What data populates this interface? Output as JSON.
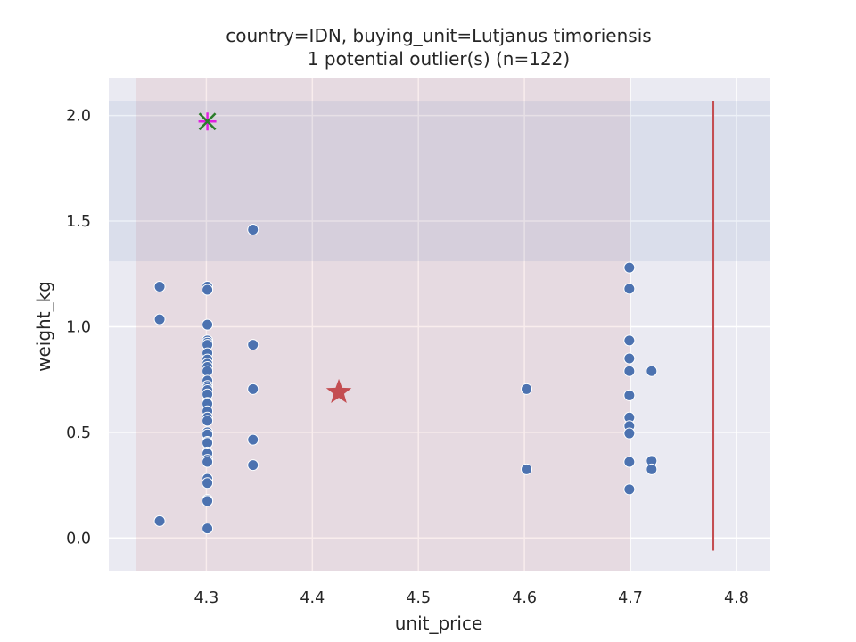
{
  "chart_data": {
    "type": "scatter",
    "title": "country=IDN, buying_unit=Lutjanus timoriensis",
    "subtitle": "1 potential outlier(s) (n=122)",
    "xlabel": "unit_price",
    "ylabel": "weight_kg",
    "xlim": [
      4.208,
      4.832
    ],
    "ylim": [
      -0.155,
      2.18
    ],
    "x_ticks": [
      4.3,
      4.4,
      4.5,
      4.6,
      4.7,
      4.8
    ],
    "x_tick_labels": [
      "4.3",
      "4.4",
      "4.5",
      "4.6",
      "4.7",
      "4.8"
    ],
    "y_ticks": [
      0.0,
      0.5,
      1.0,
      1.5,
      2.0
    ],
    "y_tick_labels": [
      "0.0",
      "0.5",
      "1.0",
      "1.5",
      "2.0"
    ],
    "grid": true,
    "colors": {
      "background": "#eaeaf2",
      "grid": "#ffffff",
      "points": "#4c72b0",
      "point_edge": "#ffffff",
      "star": "#c44e52",
      "vline": "#c44e52",
      "outlier_x": "#2a7d2a",
      "outlier_plus": "#e020e0",
      "x_band": "#c44e52",
      "y_band": "#4c72b0"
    },
    "x_band": [
      4.234,
      4.7
    ],
    "y_band": [
      1.31,
      2.07
    ],
    "vertical_line": {
      "x": 4.778,
      "y": [
        -0.06,
        2.07
      ]
    },
    "centroid_star": {
      "x": 4.425,
      "y": 0.69
    },
    "outlier": {
      "x": 4.301,
      "y": 1.972
    },
    "points": [
      [
        4.256,
        1.19
      ],
      [
        4.256,
        1.035
      ],
      [
        4.256,
        0.08
      ],
      [
        4.301,
        1.19
      ],
      [
        4.301,
        1.175
      ],
      [
        4.301,
        1.01
      ],
      [
        4.301,
        0.935
      ],
      [
        4.301,
        0.925
      ],
      [
        4.301,
        0.915
      ],
      [
        4.301,
        0.875
      ],
      [
        4.301,
        0.845
      ],
      [
        4.301,
        0.825
      ],
      [
        4.301,
        0.81
      ],
      [
        4.301,
        0.79
      ],
      [
        4.301,
        0.745
      ],
      [
        4.301,
        0.72
      ],
      [
        4.301,
        0.71
      ],
      [
        4.301,
        0.7
      ],
      [
        4.301,
        0.68
      ],
      [
        4.301,
        0.64
      ],
      [
        4.301,
        0.635
      ],
      [
        4.301,
        0.6
      ],
      [
        4.301,
        0.57
      ],
      [
        4.301,
        0.555
      ],
      [
        4.301,
        0.5
      ],
      [
        4.301,
        0.49
      ],
      [
        4.301,
        0.455
      ],
      [
        4.301,
        0.45
      ],
      [
        4.301,
        0.405
      ],
      [
        4.301,
        0.4
      ],
      [
        4.301,
        0.37
      ],
      [
        4.301,
        0.36
      ],
      [
        4.301,
        0.28
      ],
      [
        4.301,
        0.26
      ],
      [
        4.301,
        0.18
      ],
      [
        4.301,
        0.175
      ],
      [
        4.301,
        0.045
      ],
      [
        4.344,
        1.46
      ],
      [
        4.344,
        0.915
      ],
      [
        4.344,
        0.705
      ],
      [
        4.344,
        0.465
      ],
      [
        4.344,
        0.345
      ],
      [
        4.602,
        0.705
      ],
      [
        4.602,
        0.325
      ],
      [
        4.699,
        1.28
      ],
      [
        4.699,
        1.18
      ],
      [
        4.699,
        0.935
      ],
      [
        4.699,
        0.85
      ],
      [
        4.699,
        0.79
      ],
      [
        4.699,
        0.675
      ],
      [
        4.699,
        0.57
      ],
      [
        4.699,
        0.53
      ],
      [
        4.699,
        0.495
      ],
      [
        4.699,
        0.36
      ],
      [
        4.699,
        0.23
      ],
      [
        4.72,
        0.79
      ],
      [
        4.72,
        0.365
      ],
      [
        4.72,
        0.325
      ]
    ]
  }
}
